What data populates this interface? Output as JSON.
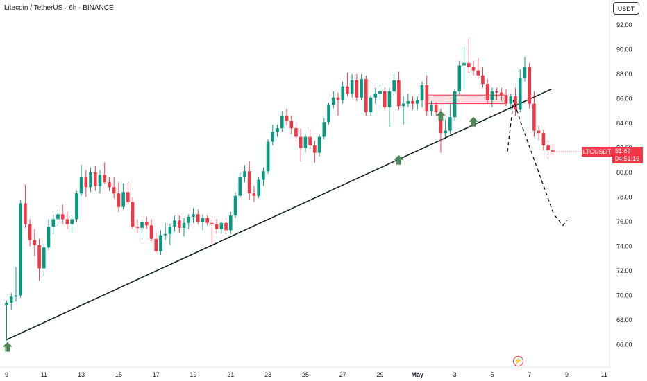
{
  "header": {
    "title": "Litecoin / TetherUS · 6h · BINANCE",
    "currency_button": "USDT"
  },
  "last_price": {
    "symbol": "LTCUSDT",
    "price": "81.69",
    "countdown": "04:51:16"
  },
  "colors": {
    "up": "#089981",
    "down": "#f23645",
    "trendline": "#0b2616",
    "zone_fill": "#f7c5c9",
    "zone_border": "#f23645",
    "arrow": "#4e8a55"
  },
  "chart_data": {
    "type": "candlestick",
    "title": "Litecoin / TetherUS · 6h · BINANCE",
    "ylim": [
      64.5,
      93.5
    ],
    "y_ticks": [
      "92.00",
      "90.00",
      "88.00",
      "86.00",
      "84.00",
      "82.00",
      "80.00",
      "78.00",
      "76.00",
      "74.00",
      "72.00",
      "70.00",
      "68.00",
      "66.00"
    ],
    "x_ticks": [
      {
        "label": "9",
        "day": 0
      },
      {
        "label": "11",
        "day": 2
      },
      {
        "label": "13",
        "day": 4
      },
      {
        "label": "15",
        "day": 6
      },
      {
        "label": "17",
        "day": 8
      },
      {
        "label": "19",
        "day": 10
      },
      {
        "label": "21",
        "day": 12
      },
      {
        "label": "23",
        "day": 14
      },
      {
        "label": "25",
        "day": 16
      },
      {
        "label": "27",
        "day": 18
      },
      {
        "label": "29",
        "day": 20
      },
      {
        "label": "May",
        "day": 22,
        "bold": true
      },
      {
        "label": "3",
        "day": 24
      },
      {
        "label": "5",
        "day": 26
      },
      {
        "label": "7",
        "day": 28
      },
      {
        "label": "9",
        "day": 30
      },
      {
        "label": "11",
        "day": 32
      }
    ],
    "candle_day_step": 0.25,
    "candles": [
      [
        69.2,
        69.6,
        66.3,
        69.4
      ],
      [
        69.4,
        70.2,
        68.8,
        69.9
      ],
      [
        69.9,
        72.3,
        69.5,
        70.0
      ],
      [
        70.0,
        77.8,
        69.8,
        77.5
      ],
      [
        77.5,
        79.0,
        75.5,
        75.8
      ],
      [
        75.8,
        76.2,
        74.0,
        74.5
      ],
      [
        74.5,
        75.4,
        73.2,
        74.1
      ],
      [
        74.1,
        74.6,
        71.2,
        72.2
      ],
      [
        72.2,
        74.2,
        71.6,
        73.9
      ],
      [
        73.9,
        76.2,
        73.7,
        75.6
      ],
      [
        75.6,
        76.6,
        75.0,
        76.2
      ],
      [
        76.2,
        77.0,
        75.6,
        76.6
      ],
      [
        76.6,
        77.4,
        75.8,
        76.2
      ],
      [
        76.2,
        76.8,
        75.4,
        75.8
      ],
      [
        75.8,
        76.5,
        75.1,
        76.2
      ],
      [
        76.2,
        78.5,
        76.0,
        78.3
      ],
      [
        78.3,
        80.6,
        78.1,
        79.6
      ],
      [
        79.6,
        80.2,
        78.0,
        78.8
      ],
      [
        78.8,
        80.4,
        78.4,
        80.0
      ],
      [
        80.0,
        80.5,
        78.5,
        78.9
      ],
      [
        78.9,
        80.2,
        78.3,
        79.8
      ],
      [
        79.8,
        80.8,
        79.1,
        79.2
      ],
      [
        79.2,
        79.6,
        78.5,
        78.8
      ],
      [
        78.8,
        79.6,
        77.9,
        78.3
      ],
      [
        78.3,
        79.2,
        76.8,
        77.2
      ],
      [
        77.2,
        79.1,
        77.0,
        78.4
      ],
      [
        78.4,
        79.2,
        77.4,
        77.6
      ],
      [
        77.6,
        78.0,
        75.4,
        75.6
      ],
      [
        75.6,
        76.2,
        75.1,
        75.5
      ],
      [
        75.5,
        76.2,
        74.5,
        76.0
      ],
      [
        76.0,
        76.4,
        75.4,
        75.7
      ],
      [
        75.7,
        76.2,
        74.4,
        74.6
      ],
      [
        74.6,
        75.1,
        73.4,
        73.6
      ],
      [
        73.6,
        75.3,
        73.3,
        74.9
      ],
      [
        74.9,
        75.9,
        74.5,
        75.0
      ],
      [
        75.0,
        75.8,
        74.1,
        75.6
      ],
      [
        75.6,
        76.5,
        75.2,
        76.1
      ],
      [
        76.1,
        76.5,
        75.1,
        75.5
      ],
      [
        75.5,
        76.3,
        74.8,
        75.9
      ],
      [
        75.9,
        76.6,
        75.4,
        76.4
      ],
      [
        76.4,
        77.1,
        75.9,
        76.6
      ],
      [
        76.6,
        77.0,
        75.8,
        76.0
      ],
      [
        76.0,
        76.6,
        75.3,
        76.3
      ],
      [
        76.3,
        76.5,
        75.7,
        75.9
      ],
      [
        75.9,
        76.2,
        74.2,
        75.8
      ],
      [
        75.8,
        76.2,
        75.0,
        75.4
      ],
      [
        75.4,
        76.0,
        75.0,
        75.9
      ],
      [
        75.9,
        76.3,
        75.0,
        75.3
      ],
      [
        75.3,
        76.8,
        75.0,
        76.5
      ],
      [
        76.5,
        78.4,
        76.3,
        78.1
      ],
      [
        78.1,
        80.0,
        77.9,
        79.6
      ],
      [
        79.6,
        80.6,
        79.2,
        80.1
      ],
      [
        80.1,
        80.9,
        77.8,
        78.3
      ],
      [
        78.3,
        78.9,
        77.6,
        78.1
      ],
      [
        78.1,
        79.6,
        77.9,
        79.4
      ],
      [
        79.4,
        80.4,
        78.9,
        80.1
      ],
      [
        80.1,
        82.7,
        79.9,
        82.5
      ],
      [
        82.5,
        83.9,
        82.2,
        83.3
      ],
      [
        83.3,
        83.9,
        82.9,
        83.6
      ],
      [
        83.6,
        85.0,
        83.3,
        84.6
      ],
      [
        84.6,
        85.2,
        83.8,
        84.2
      ],
      [
        84.2,
        84.6,
        83.1,
        83.6
      ],
      [
        83.6,
        84.1,
        82.5,
        82.9
      ],
      [
        82.9,
        83.6,
        80.9,
        82.0
      ],
      [
        82.0,
        83.1,
        81.6,
        82.9
      ],
      [
        82.9,
        83.5,
        81.9,
        82.2
      ],
      [
        82.2,
        82.6,
        80.8,
        81.6
      ],
      [
        81.6,
        83.1,
        81.3,
        82.9
      ],
      [
        82.9,
        84.4,
        82.7,
        84.1
      ],
      [
        84.1,
        85.7,
        83.9,
        85.5
      ],
      [
        85.5,
        86.6,
        85.2,
        86.1
      ],
      [
        86.1,
        86.5,
        84.6,
        85.9
      ],
      [
        85.9,
        87.4,
        85.6,
        87.0
      ],
      [
        87.0,
        88.1,
        86.2,
        86.4
      ],
      [
        86.4,
        88.0,
        86.1,
        87.5
      ],
      [
        87.5,
        88.0,
        85.8,
        86.1
      ],
      [
        86.1,
        88.0,
        85.9,
        87.6
      ],
      [
        87.6,
        87.9,
        84.6,
        84.9
      ],
      [
        84.9,
        86.3,
        84.6,
        86.1
      ],
      [
        86.1,
        86.9,
        85.6,
        86.4
      ],
      [
        86.4,
        87.2,
        85.9,
        86.6
      ],
      [
        86.6,
        86.9,
        85.1,
        85.3
      ],
      [
        85.3,
        86.9,
        83.7,
        86.6
      ],
      [
        86.6,
        88.0,
        86.3,
        87.5
      ],
      [
        87.5,
        88.2,
        85.1,
        85.4
      ],
      [
        85.4,
        86.2,
        83.9,
        85.6
      ],
      [
        85.6,
        86.4,
        85.3,
        85.8
      ],
      [
        85.8,
        86.2,
        85.1,
        85.6
      ],
      [
        85.6,
        86.2,
        85.1,
        85.9
      ],
      [
        85.9,
        87.4,
        85.3,
        87.1
      ],
      [
        87.1,
        87.9,
        84.6,
        85.0
      ],
      [
        85.0,
        85.8,
        84.6,
        85.5
      ],
      [
        85.5,
        85.7,
        84.6,
        84.9
      ],
      [
        84.9,
        85.2,
        81.6,
        83.2
      ],
      [
        83.2,
        84.3,
        82.9,
        83.4
      ],
      [
        83.4,
        85.6,
        83.1,
        84.5
      ],
      [
        84.5,
        86.8,
        84.2,
        86.6
      ],
      [
        86.6,
        89.1,
        86.3,
        88.7
      ],
      [
        88.7,
        90.2,
        86.8,
        88.9
      ],
      [
        88.9,
        90.9,
        88.1,
        88.6
      ],
      [
        88.6,
        89.1,
        87.9,
        88.3
      ],
      [
        88.3,
        89.3,
        87.6,
        87.9
      ],
      [
        87.9,
        88.6,
        86.9,
        87.2
      ],
      [
        87.2,
        87.6,
        85.6,
        85.9
      ],
      [
        85.9,
        86.9,
        85.3,
        86.6
      ],
      [
        86.6,
        86.9,
        85.9,
        86.5
      ],
      [
        86.5,
        86.9,
        85.8,
        86.3
      ],
      [
        86.3,
        86.8,
        85.4,
        85.6
      ],
      [
        85.6,
        86.4,
        85.1,
        86.2
      ],
      [
        86.2,
        86.9,
        84.6,
        85.1
      ],
      [
        85.1,
        88.4,
        84.9,
        87.7
      ],
      [
        87.7,
        89.4,
        87.4,
        88.6
      ],
      [
        88.6,
        88.9,
        85.2,
        85.6
      ],
      [
        85.6,
        86.6,
        82.9,
        83.4
      ],
      [
        83.4,
        83.8,
        82.6,
        83.2
      ],
      [
        83.2,
        83.5,
        81.8,
        82.2
      ],
      [
        82.2,
        82.6,
        81.1,
        81.8
      ],
      [
        81.8,
        82.3,
        81.4,
        81.69
      ]
    ],
    "trendline": {
      "points": [
        {
          "day": 0,
          "price": 66.4
        },
        {
          "day": 29.2,
          "price": 86.8
        }
      ]
    },
    "resistance_zone": {
      "day_start": 22.55,
      "day_end": 26.7,
      "price_low": 85.6,
      "price_high": 86.3
    },
    "projection": {
      "points": [
        {
          "day": 26.82,
          "price": 81.7
        },
        {
          "day": 27.15,
          "price": 85.9
        },
        {
          "day": 27.55,
          "price": 84.0
        },
        {
          "day": 29.3,
          "price": 76.6
        },
        {
          "day": 29.8,
          "price": 75.7
        },
        {
          "day": 30.0,
          "price": 76.1
        }
      ]
    },
    "markers": [
      {
        "type": "up-arrow",
        "day": 0.05,
        "price": 66.3
      },
      {
        "type": "up-arrow",
        "day": 21.0,
        "price": 81.5
      },
      {
        "type": "up-arrow",
        "day": 23.25,
        "price": 85.1
      },
      {
        "type": "up-arrow",
        "day": 25.0,
        "price": 84.6
      }
    ]
  }
}
